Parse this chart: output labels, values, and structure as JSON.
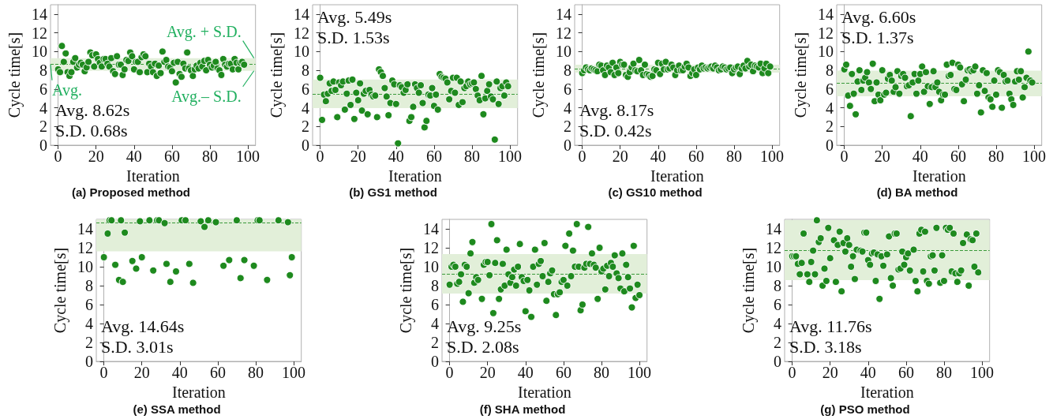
{
  "chart_data": [
    {
      "type": "scatter",
      "title": "(a) Proposed method",
      "xlabel": "Iteration",
      "ylabel": "Cycle time[s]",
      "xlim": [
        -4,
        104
      ],
      "ylim": [
        0,
        15
      ],
      "xticks": [
        0,
        20,
        40,
        60,
        80,
        100
      ],
      "yticks": [
        0,
        2,
        4,
        6,
        8,
        10,
        12,
        14
      ],
      "marker": "circle",
      "x": [
        0,
        1,
        2,
        3,
        4,
        5,
        6,
        7,
        8,
        9,
        10,
        11,
        12,
        13,
        14,
        15,
        16,
        17,
        18,
        19,
        20,
        21,
        22,
        23,
        24,
        25,
        26,
        27,
        28,
        29,
        30,
        31,
        32,
        33,
        34,
        35,
        36,
        37,
        38,
        39,
        40,
        41,
        42,
        43,
        44,
        45,
        46,
        47,
        48,
        49,
        50,
        51,
        52,
        53,
        54,
        55,
        56,
        57,
        58,
        59,
        60,
        61,
        62,
        63,
        64,
        65,
        66,
        67,
        68,
        69,
        70,
        71,
        72,
        73,
        74,
        75,
        76,
        77,
        78,
        79,
        80,
        81,
        82,
        83,
        84,
        85,
        86,
        87,
        88,
        89,
        90,
        91,
        92,
        93,
        94,
        95,
        96,
        97,
        98
      ],
      "series": [
        {
          "color": "#1e8a1e",
          "values": [
            8.1,
            7.8,
            10.6,
            8.9,
            9.8,
            7.8,
            7.4,
            7.8,
            8.9,
            9.3,
            8.3,
            8.6,
            8.8,
            8.6,
            7.9,
            8.3,
            8.9,
            9.9,
            9.6,
            8.4,
            9.7,
            9.2,
            8.8,
            8.4,
            9.2,
            9.2,
            8.7,
            8.4,
            9.3,
            7.9,
            7.6,
            9.5,
            8.6,
            8.6,
            7.5,
            8.1,
            9.1,
            9.0,
            9.9,
            9.5,
            8.1,
            8.9,
            8.9,
            7.8,
            9.4,
            9.7,
            9.5,
            7.8,
            8.7,
            8.4,
            7.8,
            8.7,
            7.4,
            8.5,
            7.7,
            10.0,
            8.9,
            9.1,
            8.4,
            8.3,
            7.9,
            8.8,
            6.7,
            8.9,
            7.6,
            7.3,
            8.7,
            8.2,
            9.9,
            8.2,
            8.0,
            7.4,
            8.1,
            8.5,
            8.2,
            8.8,
            8.4,
            9.0,
            8.0,
            9.1,
            8.6,
            8.3,
            8.5,
            8.9,
            8.2,
            8.0,
            7.5,
            9.2,
            8.6,
            8.4,
            8.7,
            8.7,
            8.1,
            9.2,
            8.8,
            8.1,
            8.8,
            8.9,
            8.6
          ]
        }
      ],
      "bands": [
        {
          "axis": "y",
          "from": 7.94,
          "to": 9.3,
          "color": "#e2efd9"
        }
      ],
      "ref_lines": [
        {
          "axis": "y",
          "value": 8.62,
          "color": "#3a9a3a",
          "line_style": "dashed"
        }
      ],
      "annotations": [
        "Avg. 8.62s",
        "S.D. 0.68s",
        "Avg. + S.D.",
        "Avg.",
        "Avg.– S.D."
      ]
    },
    {
      "type": "scatter",
      "title": "(b) GS1 method",
      "xlabel": "Iteration",
      "ylabel": "Cycle time[s]",
      "xlim": [
        -4,
        104
      ],
      "ylim": [
        0,
        15
      ],
      "xticks": [
        0,
        20,
        40,
        60,
        80,
        100
      ],
      "yticks": [
        0,
        2,
        4,
        6,
        8,
        10,
        12,
        14
      ],
      "marker": "circle",
      "x": [
        0,
        1,
        2,
        3,
        4,
        5,
        6,
        7,
        8,
        9,
        10,
        11,
        12,
        13,
        14,
        15,
        16,
        17,
        18,
        19,
        20,
        21,
        22,
        23,
        24,
        25,
        26,
        27,
        28,
        29,
        30,
        31,
        32,
        33,
        34,
        35,
        36,
        37,
        38,
        39,
        40,
        41,
        42,
        43,
        44,
        45,
        46,
        47,
        48,
        49,
        50,
        51,
        52,
        53,
        54,
        55,
        56,
        57,
        58,
        59,
        60,
        61,
        62,
        63,
        64,
        65,
        66,
        67,
        68,
        69,
        70,
        71,
        72,
        73,
        74,
        75,
        76,
        77,
        78,
        79,
        80,
        81,
        82,
        83,
        84,
        85,
        86,
        87,
        88,
        89,
        90,
        91,
        92,
        93,
        94,
        95,
        96,
        97,
        98,
        99
      ],
      "series": [
        {
          "color": "#1e8a1e",
          "values": [
            7.2,
            2.7,
            5.4,
            4.7,
            5.5,
            6.6,
            5.8,
            6.8,
            5.9,
            3.0,
            6.7,
            6.4,
            6.8,
            3.8,
            5.5,
            6.9,
            4.3,
            7.0,
            2.8,
            5.6,
            4.8,
            6.6,
            3.7,
            5.5,
            5.8,
            3.3,
            5.9,
            5.4,
            5.2,
            5.3,
            3.0,
            8.1,
            7.8,
            7.4,
            6.1,
            5.2,
            3.2,
            4.5,
            6.9,
            6.5,
            4.4,
            0.2,
            6.4,
            6.2,
            5.6,
            5.9,
            6.5,
            2.6,
            3.0,
            4.1,
            6.5,
            6.1,
            5.6,
            6.4,
            4.5,
            1.9,
            2.6,
            5.4,
            5.3,
            6.1,
            4.2,
            5.4,
            3.8,
            7.6,
            7.3,
            7.2,
            7.1,
            6.7,
            4.9,
            5.8,
            7.2,
            5.6,
            7.2,
            4.3,
            6.8,
            4.6,
            6.1,
            6.3,
            6.8,
            6.5,
            6.6,
            6.7,
            6.0,
            5.3,
            4.8,
            7.4,
            3.3,
            5.0,
            5.8,
            6.5,
            5.2,
            4.9,
            0.6,
            6.8,
            4.4,
            6.1,
            6.3,
            5.3,
            6.7,
            6.3
          ]
        }
      ],
      "bands": [
        {
          "axis": "y",
          "from": 3.96,
          "to": 7.02,
          "color": "#e2efd9"
        }
      ],
      "ref_lines": [
        {
          "axis": "y",
          "value": 5.49,
          "color": "#3a9a3a",
          "line_style": "dashed"
        }
      ],
      "annotations": [
        "Avg. 5.49s",
        "S.D. 1.53s"
      ]
    },
    {
      "type": "scatter",
      "title": "(c) GS10 method",
      "xlabel": "Iteration",
      "ylabel": "Cycle time[s]",
      "xlim": [
        -4,
        104
      ],
      "ylim": [
        0,
        15
      ],
      "xticks": [
        0,
        20,
        40,
        60,
        80,
        100
      ],
      "yticks": [
        0,
        2,
        4,
        6,
        8,
        10,
        12,
        14
      ],
      "marker": "circle",
      "x": [
        0,
        1,
        2,
        3,
        4,
        5,
        6,
        7,
        8,
        9,
        10,
        11,
        12,
        13,
        14,
        15,
        16,
        17,
        18,
        19,
        20,
        21,
        22,
        23,
        24,
        25,
        26,
        27,
        28,
        29,
        30,
        31,
        32,
        33,
        34,
        35,
        36,
        37,
        38,
        39,
        40,
        41,
        42,
        43,
        44,
        45,
        46,
        47,
        48,
        49,
        50,
        51,
        52,
        53,
        54,
        55,
        56,
        57,
        58,
        59,
        60,
        61,
        62,
        63,
        64,
        65,
        66,
        67,
        68,
        69,
        70,
        71,
        72,
        73,
        74,
        75,
        76,
        77,
        78,
        79,
        80,
        81,
        82,
        83,
        84,
        85,
        86,
        87,
        88,
        89,
        90,
        91,
        92,
        93,
        94,
        95,
        96,
        97,
        98,
        99
      ],
      "series": [
        {
          "color": "#1e8a1e",
          "values": [
            7.7,
            8.0,
            8.3,
            8.1,
            8.0,
            8.2,
            8.1,
            8.0,
            7.9,
            8.6,
            8.5,
            8.0,
            7.5,
            8.5,
            8.3,
            7.8,
            8.8,
            7.5,
            8.3,
            7.7,
            8.9,
            8.6,
            8.6,
            7.5,
            7.3,
            7.8,
            8.3,
            8.7,
            8.0,
            7.9,
            9.1,
            8.0,
            7.5,
            8.6,
            7.6,
            7.5,
            7.3,
            7.4,
            8.1,
            8.0,
            8.8,
            7.6,
            8.7,
            8.1,
            8.9,
            8.1,
            8.2,
            8.6,
            8.3,
            7.5,
            8.0,
            8.5,
            8.0,
            8.0,
            8.4,
            8.7,
            8.3,
            7.4,
            7.7,
            8.1,
            7.5,
            8.3,
            8.1,
            8.5,
            8.2,
            8.3,
            8.2,
            8.3,
            8.4,
            8.2,
            8.5,
            8.3,
            8.0,
            8.1,
            8.4,
            8.3,
            8.1,
            8.2,
            8.3,
            7.7,
            8.1,
            8.3,
            8.4,
            7.6,
            8.2,
            8.5,
            8.2,
            9.0,
            8.4,
            8.6,
            7.9,
            8.5,
            8.4,
            8.3,
            8.7,
            7.7,
            8.2,
            8.7,
            7.7,
            8.4
          ]
        }
      ],
      "bands": [
        {
          "axis": "y",
          "from": 7.75,
          "to": 8.59,
          "color": "#e2efd9"
        }
      ],
      "ref_lines": [
        {
          "axis": "y",
          "value": 8.17,
          "color": "#3a9a3a",
          "line_style": "dashed"
        }
      ],
      "annotations": [
        "Avg. 8.17s",
        "S.D. 0.42s"
      ]
    },
    {
      "type": "scatter",
      "title": "(d) BA method",
      "xlabel": "Iteration",
      "ylabel": "Cycle time[s]",
      "xlim": [
        -4,
        104
      ],
      "ylim": [
        0,
        15
      ],
      "xticks": [
        0,
        20,
        40,
        60,
        80,
        100
      ],
      "yticks": [
        0,
        2,
        4,
        6,
        8,
        10,
        12,
        14
      ],
      "marker": "circle",
      "x": [
        0,
        1,
        2,
        3,
        4,
        5,
        6,
        7,
        8,
        9,
        10,
        11,
        12,
        13,
        14,
        15,
        16,
        17,
        18,
        19,
        20,
        21,
        22,
        23,
        24,
        25,
        26,
        27,
        28,
        29,
        30,
        31,
        32,
        33,
        34,
        35,
        36,
        37,
        38,
        39,
        40,
        41,
        42,
        43,
        44,
        45,
        46,
        47,
        48,
        49,
        50,
        51,
        52,
        53,
        54,
        55,
        56,
        57,
        58,
        59,
        60,
        61,
        62,
        63,
        64,
        65,
        66,
        67,
        68,
        69,
        70,
        71,
        72,
        73,
        74,
        75,
        76,
        77,
        78,
        79,
        80,
        81,
        82,
        83,
        84,
        85,
        86,
        87,
        88,
        89,
        90,
        91,
        92,
        93,
        94,
        95,
        96,
        97,
        98,
        99
      ],
      "series": [
        {
          "color": "#1e8a1e",
          "values": [
            8.1,
            8.6,
            5.3,
            4.2,
            7.6,
            5.5,
            3.3,
            6.8,
            8.0,
            5.9,
            6.9,
            7.2,
            7.8,
            6.7,
            6.0,
            8.7,
            4.7,
            6.7,
            5.4,
            4.8,
            8.0,
            5.4,
            5.6,
            7.1,
            7.5,
            6.9,
            5.7,
            6.2,
            7.9,
            5.5,
            7.4,
            7.6,
            7.2,
            6.3,
            6.4,
            3.1,
            6.7,
            7.6,
            5.5,
            6.9,
            7.6,
            8.4,
            5.7,
            7.8,
            6.3,
            4.4,
            6.2,
            7.9,
            6.2,
            6.7,
            5.7,
            4.8,
            5.4,
            5.4,
            8.6,
            7.4,
            7.5,
            8.8,
            6.0,
            5.9,
            8.6,
            8.3,
            6.5,
            4.7,
            7.0,
            8.0,
            8.1,
            7.9,
            8.0,
            8.4,
            5.5,
            6.4,
            3.5,
            8.0,
            5.8,
            7.7,
            5.1,
            4.9,
            4.1,
            6.9,
            5.4,
            8.0,
            7.8,
            4.0,
            7.5,
            6.8,
            6.9,
            5.5,
            4.9,
            4.3,
            6.8,
            7.9,
            7.0,
            7.9,
            5.1,
            6.2,
            7.2,
            10.0,
            6.9,
            6.7
          ]
        }
      ],
      "bands": [
        {
          "axis": "y",
          "from": 5.23,
          "to": 7.97,
          "color": "#e2efd9"
        }
      ],
      "ref_lines": [
        {
          "axis": "y",
          "value": 6.6,
          "color": "#3a9a3a",
          "line_style": "dashed"
        }
      ],
      "annotations": [
        "Avg. 6.60s",
        "S.D. 1.37s"
      ]
    },
    {
      "type": "scatter",
      "title": "(e) SSA method",
      "xlabel": "Iteration",
      "ylabel": "Cycle time[s]",
      "xlim": [
        -4,
        104
      ],
      "ylim": [
        0,
        15
      ],
      "xticks": [
        0,
        20,
        40,
        60,
        80,
        100
      ],
      "yticks": [
        0,
        2,
        4,
        6,
        8,
        10,
        12,
        14
      ],
      "marker": "circle",
      "x": [
        0,
        2,
        3,
        4,
        6,
        8,
        9,
        10,
        11,
        15,
        17,
        19,
        20,
        24,
        26,
        28,
        29,
        32,
        33,
        35,
        38,
        41,
        43,
        45,
        47,
        51,
        53,
        55,
        59,
        63,
        66,
        70,
        72,
        74,
        79,
        81,
        82,
        86,
        92,
        97,
        98,
        99
      ],
      "series": [
        {
          "color": "#1e8a1e",
          "values": [
            11.0,
            13.5,
            14.9,
            14.9,
            10.2,
            8.6,
            14.9,
            8.4,
            13.6,
            10.6,
            9.8,
            14.8,
            11.0,
            14.9,
            9.6,
            14.9,
            14.9,
            14.6,
            10.3,
            8.4,
            9.5,
            14.9,
            14.9,
            10.3,
            8.3,
            14.8,
            14.2,
            14.9,
            14.7,
            10.1,
            10.7,
            14.9,
            8.8,
            10.7,
            10.1,
            14.9,
            14.9,
            8.6,
            14.9,
            14.7,
            9.1,
            11.0
          ]
        }
      ],
      "bands": [
        {
          "axis": "y",
          "from": 11.63,
          "to": 15,
          "color": "#e2efd9"
        }
      ],
      "ref_lines": [
        {
          "axis": "y",
          "value": 14.64,
          "color": "#3a9a3a",
          "line_style": "dashed"
        }
      ],
      "annotations": [
        "Avg. 14.64s",
        "S.D. 3.01s"
      ]
    },
    {
      "type": "scatter",
      "title": "(f) SHA method",
      "xlabel": "Iteration",
      "ylabel": "Cycle time[s]",
      "xlim": [
        -4,
        104
      ],
      "ylim": [
        0,
        15
      ],
      "xticks": [
        0,
        20,
        40,
        60,
        80,
        100
      ],
      "yticks": [
        0,
        2,
        4,
        6,
        8,
        10,
        12,
        14
      ],
      "marker": "circle",
      "x": [
        0,
        1,
        2,
        3,
        4,
        5,
        6,
        7,
        8,
        9,
        10,
        11,
        12,
        13,
        14,
        15,
        17,
        18,
        19,
        20,
        21,
        22,
        23,
        24,
        25,
        26,
        27,
        28,
        29,
        30,
        31,
        32,
        33,
        34,
        35,
        36,
        37,
        38,
        39,
        40,
        41,
        42,
        43,
        44,
        45,
        46,
        47,
        48,
        49,
        50,
        51,
        52,
        53,
        54,
        55,
        56,
        57,
        58,
        59,
        60,
        61,
        62,
        63,
        64,
        65,
        66,
        67,
        68,
        69,
        70,
        71,
        72,
        73,
        74,
        75,
        76,
        77,
        78,
        79,
        80,
        81,
        82,
        83,
        84,
        85,
        86,
        87,
        88,
        89,
        90,
        91,
        92,
        93,
        94,
        95,
        96,
        97,
        98,
        99,
        100
      ],
      "series": [
        {
          "color": "#1e8a1e",
          "values": [
            8.1,
            10.0,
            10.2,
            10.0,
            8.2,
            8.4,
            9.2,
            6.3,
            10.2,
            10.0,
            7.2,
            11.4,
            12.6,
            8.3,
            8.9,
            8.6,
            6.6,
            10.2,
            10.5,
            10.5,
            9.1,
            14.5,
            5.1,
            10.4,
            12.8,
            6.6,
            7.6,
            10.3,
            8.0,
            11.8,
            9.2,
            8.3,
            8.9,
            9.7,
            8.0,
            10.0,
            12.4,
            8.9,
            8.5,
            5.3,
            8.6,
            7.5,
            4.7,
            10.0,
            11.8,
            8.1,
            10.3,
            10.6,
            9.0,
            12.5,
            6.4,
            8.4,
            9.3,
            9.6,
            7.1,
            4.9,
            7.1,
            7.3,
            8.4,
            8.6,
            12.2,
            8.0,
            13.5,
            9.0,
            11.7,
            10.0,
            14.5,
            10.0,
            5.4,
            6.0,
            9.9,
            10.3,
            14.2,
            10.3,
            11.4,
            10.2,
            9.9,
            6.6,
            12.0,
            9.5,
            9.8,
            7.6,
            10.1,
            9.0,
            10.4,
            10.0,
            11.2,
            9.3,
            8.8,
            7.7,
            11.4,
            7.4,
            10.2,
            8.9,
            7.7,
            5.7,
            12.2,
            6.7,
            8.1,
            7.0
          ]
        }
      ],
      "bands": [
        {
          "axis": "y",
          "from": 7.17,
          "to": 11.33,
          "color": "#e2efd9"
        }
      ],
      "ref_lines": [
        {
          "axis": "y",
          "value": 9.25,
          "color": "#3a9a3a",
          "line_style": "dashed"
        }
      ],
      "annotations": [
        "Avg. 9.25s",
        "S.D. 2.08s"
      ]
    },
    {
      "type": "scatter",
      "title": "(g) PSO method",
      "xlabel": "Iteration",
      "ylabel": "Cycle time[s]",
      "xlim": [
        -4,
        104
      ],
      "ylim": [
        0,
        15
      ],
      "xticks": [
        0,
        20,
        40,
        60,
        80,
        100
      ],
      "yticks": [
        0,
        2,
        4,
        6,
        8,
        10,
        12,
        14
      ],
      "marker": "circle",
      "x": [
        0,
        1,
        2,
        3,
        4,
        5,
        6,
        8,
        9,
        10,
        11,
        12,
        13,
        14,
        15,
        16,
        17,
        18,
        19,
        20,
        22,
        23,
        24,
        25,
        26,
        27,
        28,
        29,
        30,
        31,
        32,
        33,
        34,
        36,
        37,
        38,
        39,
        40,
        41,
        42,
        43,
        44,
        45,
        46,
        47,
        48,
        50,
        51,
        52,
        53,
        54,
        55,
        56,
        57,
        58,
        59,
        60,
        61,
        62,
        64,
        65,
        66,
        67,
        68,
        69,
        70,
        71,
        72,
        73,
        74,
        75,
        76,
        78,
        79,
        80,
        81,
        82,
        83,
        84,
        85,
        86,
        87,
        88,
        89,
        90,
        92,
        93,
        94,
        95,
        96,
        97,
        98
      ],
      "series": [
        {
          "color": "#1e8a1e",
          "values": [
            11.1,
            11.1,
            11.1,
            10.3,
            9.2,
            10.4,
            13.5,
            9.2,
            8.4,
            10.5,
            11.7,
            9.2,
            14.9,
            12.6,
            13.0,
            8.0,
            9.8,
            8.5,
            14.1,
            10.9,
            12.8,
            8.4,
            12.3,
            13.7,
            7.4,
            12.5,
            11.6,
            13.0,
            12.3,
            10.0,
            11.1,
            8.7,
            11.8,
            11.7,
            11.6,
            13.6,
            13.6,
            10.7,
            10.2,
            11.4,
            11.5,
            8.5,
            11.3,
            6.6,
            11.1,
            10.1,
            11.3,
            13.2,
            8.8,
            8.0,
            13.5,
            13.5,
            9.7,
            9.8,
            11.6,
            10.2,
            11.0,
            11.4,
            9.6,
            11.8,
            8.5,
            7.4,
            13.5,
            13.9,
            9.5,
            13.7,
            8.5,
            8.2,
            11.1,
            11.2,
            9.6,
            14.1,
            8.3,
            11.2,
            8.5,
            14.1,
            13.9,
            14.1,
            9.5,
            13.5,
            9.3,
            8.4,
            9.3,
            9.6,
            12.5,
            13.4,
            8.0,
            12.9,
            12.8,
            10.0,
            13.5,
            9.4
          ]
        }
      ],
      "bands": [
        {
          "axis": "y",
          "from": 8.58,
          "to": 14.94,
          "color": "#e2efd9"
        }
      ],
      "ref_lines": [
        {
          "axis": "y",
          "value": 11.76,
          "color": "#3a9a3a",
          "line_style": "dashed"
        }
      ],
      "annotations": [
        "Avg. 11.76s",
        "S.D. 3.18s"
      ]
    }
  ]
}
